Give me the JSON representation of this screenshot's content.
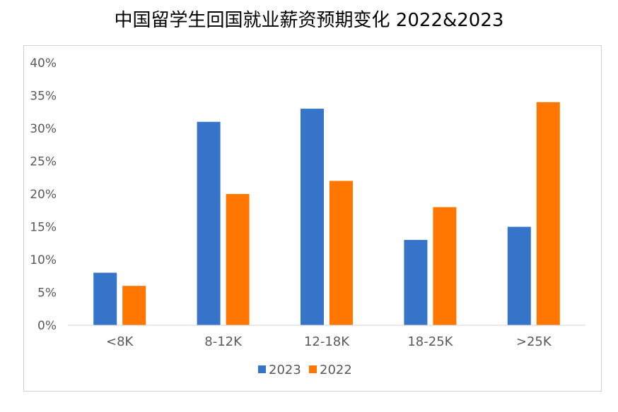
{
  "chart_data": {
    "type": "bar",
    "title": "中国留学生回国就业薪资预期变化 2022&2023",
    "categories": [
      "<8K",
      "8-12K",
      "12-18K",
      "18-25K",
      ">25K"
    ],
    "series": [
      {
        "name": "2023",
        "values": [
          8,
          31,
          33,
          13,
          15
        ],
        "color": "#3574c9"
      },
      {
        "name": "2022",
        "values": [
          6,
          20,
          22,
          18,
          34
        ],
        "color": "#ff7700"
      }
    ],
    "ylim": [
      0,
      40
    ],
    "yticks": [
      "0%",
      "5%",
      "10%",
      "15%",
      "20%",
      "25%",
      "30%",
      "35%",
      "40%"
    ],
    "legend_position": "bottom",
    "grid": false
  }
}
